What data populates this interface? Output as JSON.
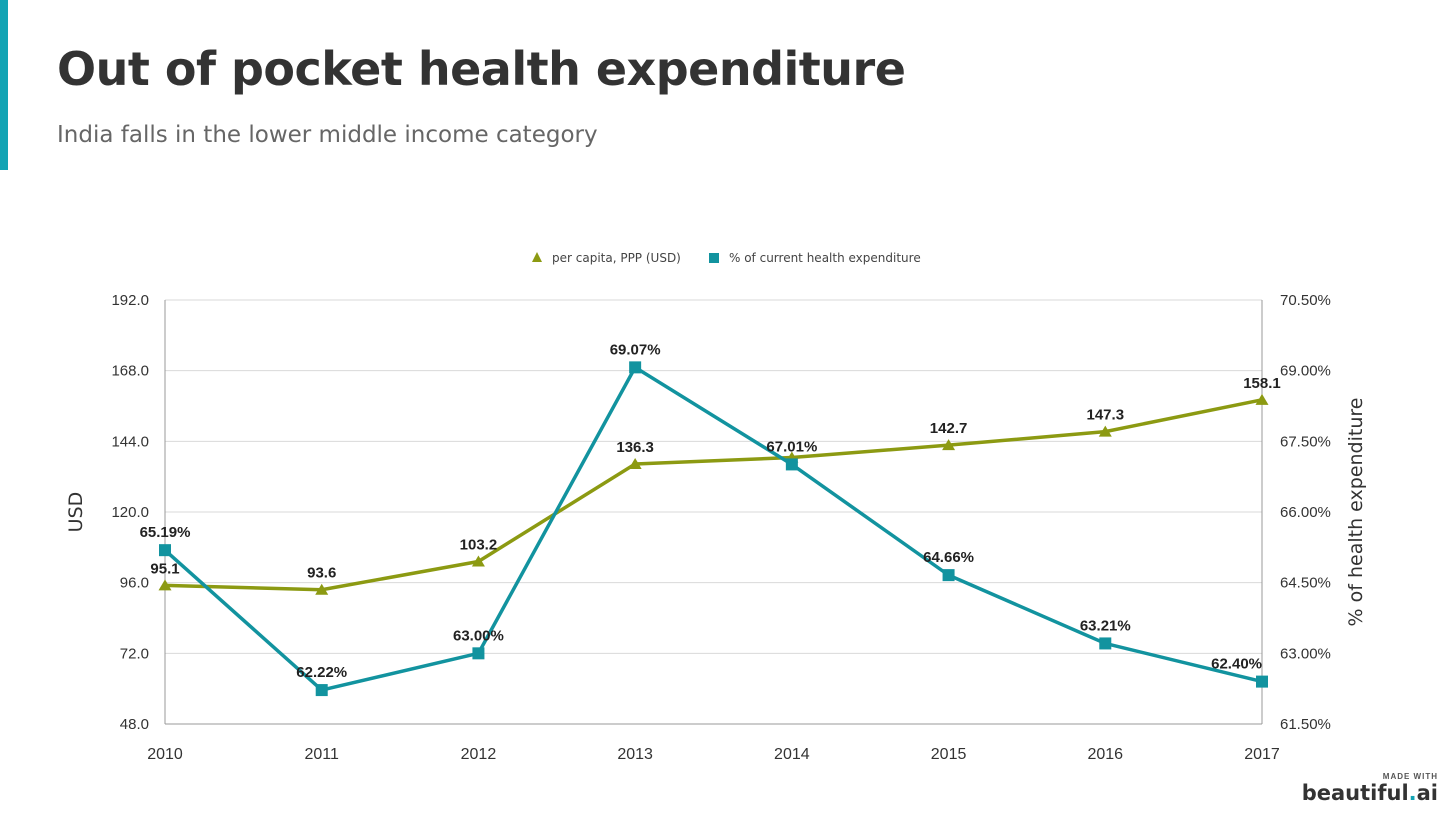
{
  "header": {
    "title": "Out of pocket health expenditure",
    "subtitle": "India falls in the lower middle income category"
  },
  "branding": {
    "made_with": "MADE WITH",
    "name": "beautiful",
    "dot": ".",
    "suffix": "ai"
  },
  "colors": {
    "accent": "#12a4b4",
    "series_per_capita": "#8c9a12",
    "series_pct": "#12939f",
    "grid": "#d9d9d9",
    "axis": "#999999"
  },
  "chart_data": {
    "type": "line",
    "categories": [
      "2010",
      "2011",
      "2012",
      "2013",
      "2014",
      "2015",
      "2016",
      "2017"
    ],
    "series": [
      {
        "name": "per capita, PPP (USD)",
        "axis": "left",
        "marker": "triangle",
        "values": [
          95.1,
          93.6,
          103.2,
          136.3,
          138.5,
          142.7,
          147.3,
          158.1
        ],
        "labels": [
          "95.1",
          "93.6",
          "103.2",
          "136.3",
          "",
          "142.7",
          "147.3",
          "158.1"
        ]
      },
      {
        "name": "% of current health expenditure",
        "axis": "right",
        "marker": "square",
        "values": [
          65.19,
          62.22,
          63.0,
          69.07,
          67.01,
          64.66,
          63.21,
          62.4
        ],
        "labels": [
          "65.19%",
          "62.22%",
          "63.00%",
          "69.07%",
          "67.01%",
          "64.66%",
          "63.21%",
          "62.40%"
        ]
      }
    ],
    "left_axis": {
      "label": "USD",
      "range": [
        48,
        192
      ],
      "ticks": [
        "48.0",
        "72.0",
        "96.0",
        "120.0",
        "144.0",
        "168.0",
        "192.0"
      ]
    },
    "right_axis": {
      "label": "% of health expenditure",
      "range": [
        61.5,
        70.5
      ],
      "ticks": [
        "61.50%",
        "63.00%",
        "64.50%",
        "66.00%",
        "67.50%",
        "69.00%",
        "70.50%"
      ]
    },
    "grid": true,
    "legend_position": "top-center"
  }
}
